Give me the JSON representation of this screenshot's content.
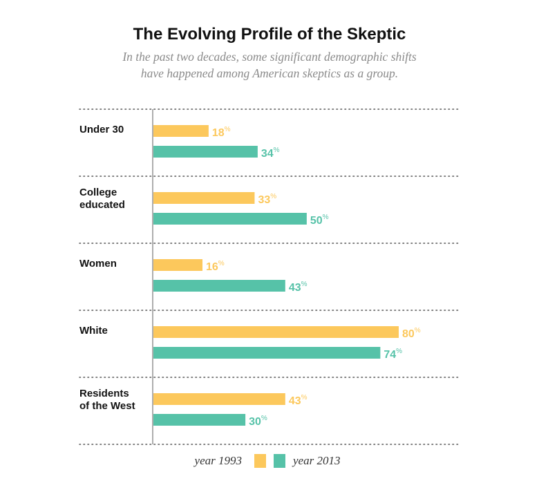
{
  "title": "The Evolving Profile of the Skeptic",
  "subtitle_line1": "In the past two decades, some significant demographic shifts",
  "subtitle_line2": "have happened among American skeptics as a group.",
  "colors": {
    "year_1993": "#fcc85c",
    "year_2013": "#56c2a8",
    "axis": "#777777",
    "dotted": "#555555"
  },
  "chart_data": {
    "type": "bar",
    "orientation": "horizontal",
    "unit": "%",
    "categories": [
      [
        "Under 30"
      ],
      [
        "College",
        "educated"
      ],
      [
        "Women"
      ],
      [
        "White"
      ],
      [
        "Residents",
        "of the West"
      ]
    ],
    "series": [
      {
        "name": "year 1993",
        "values": [
          18,
          33,
          16,
          80,
          43
        ]
      },
      {
        "name": "year 2013",
        "values": [
          34,
          50,
          43,
          74,
          30
        ]
      }
    ],
    "xlim": [
      0,
      80
    ],
    "legend": {
      "position": "bottom-center",
      "labels": [
        "year 1993",
        "year 2013"
      ]
    }
  }
}
